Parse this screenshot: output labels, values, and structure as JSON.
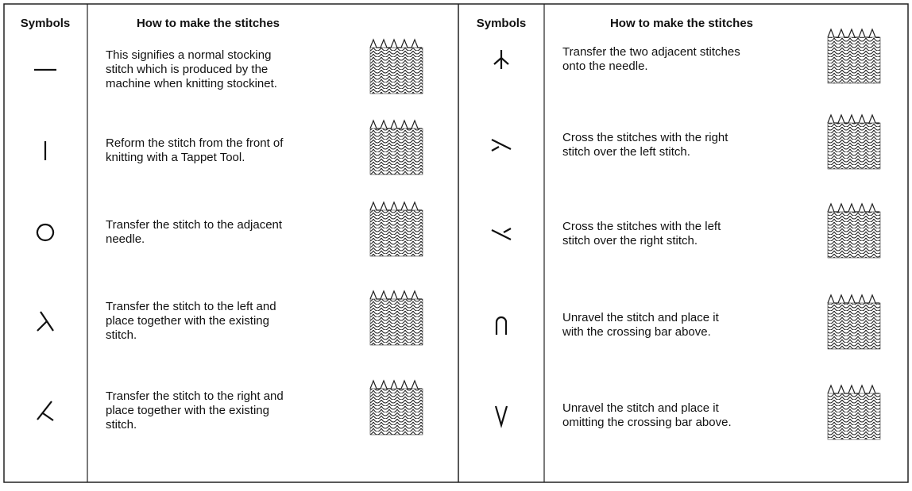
{
  "left": {
    "header": {
      "symbols": "Symbols",
      "how": "How to make the stitches"
    },
    "rows": [
      {
        "lines": [
          "This signifies a normal stocking",
          "stitch which is produced by the",
          "machine when knitting stockinet."
        ]
      },
      {
        "lines": [
          "Reform the stitch from the front of",
          "knitting with a Tappet Tool."
        ]
      },
      {
        "lines": [
          "Transfer the stitch to the adjacent",
          "needle."
        ]
      },
      {
        "lines": [
          "Transfer the stitch to the left and",
          "place together with the existing",
          "stitch."
        ]
      },
      {
        "lines": [
          "Transfer the stitch to the right and",
          "place together with the existing",
          "stitch."
        ]
      }
    ]
  },
  "right": {
    "header": {
      "symbols": "Symbols",
      "how": "How to make the stitches"
    },
    "rows": [
      {
        "lines": [
          "Transfer the two adjacent stitches",
          "onto the needle."
        ]
      },
      {
        "lines": [
          "Cross the stitches with the right",
          "stitch over the left stitch."
        ]
      },
      {
        "lines": [
          "Cross the stitches with the left",
          "stitch over the right stitch."
        ]
      },
      {
        "lines": [
          "Unravel the stitch and place it",
          "with the crossing bar above."
        ]
      },
      {
        "lines": [
          "Unravel the stitch and place it",
          "omitting the crossing bar above."
        ]
      }
    ]
  }
}
